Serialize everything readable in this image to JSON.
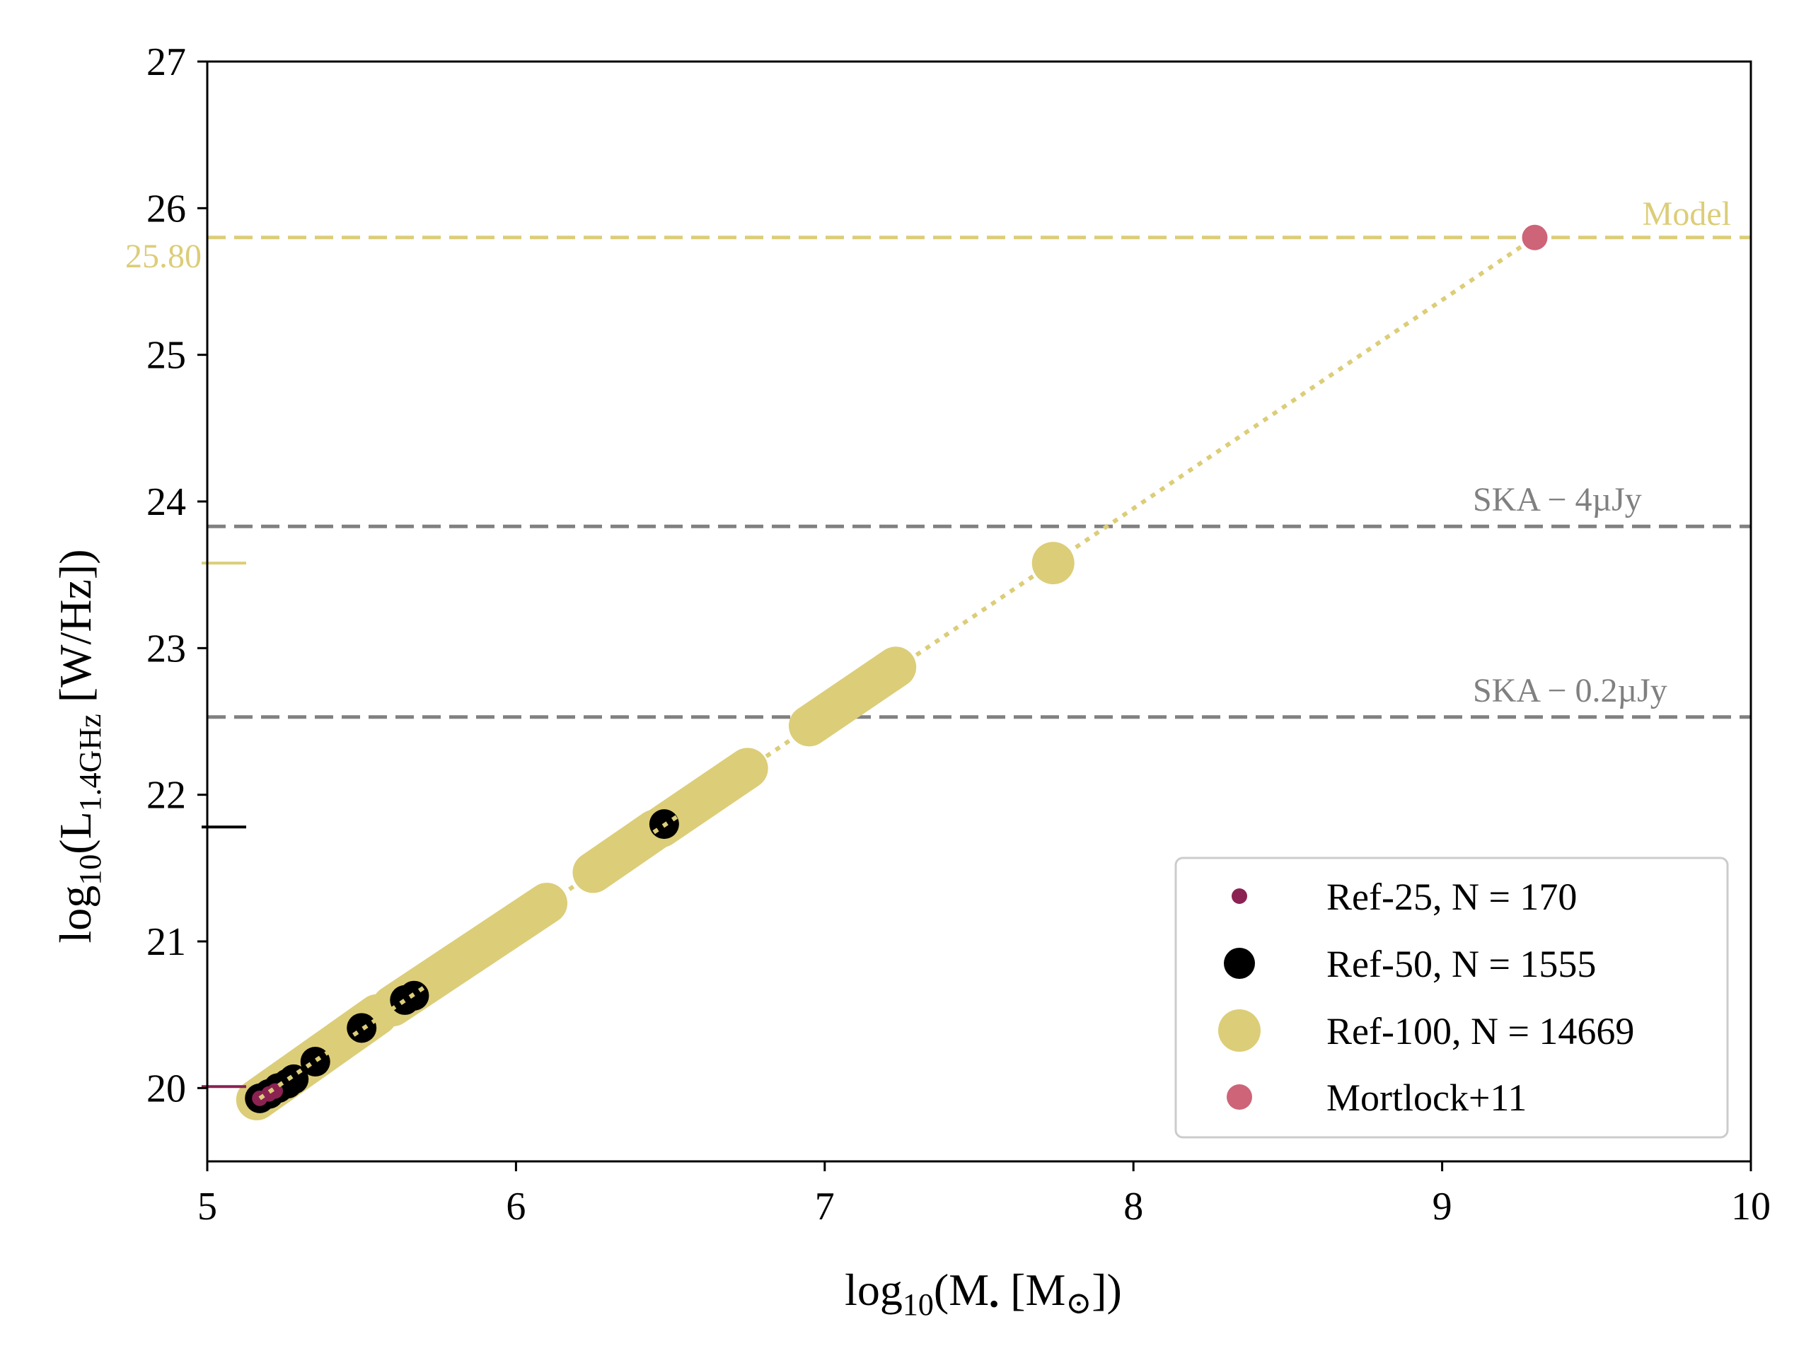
{
  "chart_data": {
    "type": "scatter",
    "title": "",
    "xlabel": {
      "prefix": "log",
      "sub": "10",
      "body": "(M",
      "bullet": "•",
      "unit_open": " [M",
      "sun": "⊙",
      "close": "])"
    },
    "ylabel": {
      "prefix": "log",
      "sub1": "10",
      "body": "(L",
      "sub2": "1.4GHz",
      "unit": " [W/Hz])"
    },
    "xlim": [
      5,
      10
    ],
    "ylim": [
      19.5,
      27
    ],
    "x_ticks": [
      5,
      6,
      7,
      8,
      9,
      10
    ],
    "x_tick_labels": [
      "5",
      "6",
      "7",
      "8",
      "9",
      "10"
    ],
    "y_ticks": [
      20,
      21,
      22,
      23,
      24,
      25,
      26,
      27
    ],
    "y_tick_labels": [
      "20",
      "21",
      "22",
      "23",
      "24",
      "25",
      "26",
      "27"
    ],
    "grid": false,
    "legend_position": "lower right",
    "colors": {
      "ref25": "#8b2252",
      "ref50": "#000000",
      "ref100": "#dccd78",
      "mortlock": "#cd6478",
      "threshold": "#808080",
      "model": "#dccd78"
    },
    "series": [
      {
        "name": "Ref-25, N = 170",
        "points": [
          [
            5.17,
            19.93
          ],
          [
            5.2,
            19.96
          ],
          [
            5.22,
            19.98
          ]
        ]
      },
      {
        "name": "Ref-50, N = 1555",
        "points": [
          [
            5.17,
            19.93
          ],
          [
            5.2,
            19.96
          ],
          [
            5.23,
            20.0
          ],
          [
            5.26,
            20.03
          ],
          [
            5.28,
            20.06
          ],
          [
            5.35,
            20.18
          ],
          [
            5.5,
            20.41
          ],
          [
            5.64,
            20.6
          ],
          [
            5.67,
            20.63
          ],
          [
            6.48,
            21.8
          ]
        ]
      },
      {
        "name": "Ref-100, N = 14669",
        "segments": [
          [
            5.16,
            19.92,
            5.55,
            20.5
          ],
          [
            5.6,
            20.56,
            6.1,
            21.26
          ],
          [
            6.25,
            21.47,
            6.45,
            21.76
          ],
          [
            6.47,
            21.78,
            6.75,
            22.18
          ],
          [
            6.95,
            22.47,
            7.23,
            22.87
          ]
        ],
        "points": [
          [
            7.74,
            23.58
          ]
        ]
      },
      {
        "name": "Mortlock+11",
        "points": [
          [
            9.3,
            25.8
          ]
        ]
      }
    ],
    "fit_line": [
      [
        5.17,
        19.93
      ],
      [
        9.3,
        25.8
      ]
    ],
    "horizontal_lines": [
      {
        "y": 25.8,
        "label": "Model",
        "value_label": "25.80",
        "color": "#dccd78"
      },
      {
        "y": 23.83,
        "label": "SKA − 4µJy",
        "color": "#808080"
      },
      {
        "y": 22.53,
        "label": "SKA − 0.2µJy",
        "color": "#808080"
      }
    ],
    "axis_markers": [
      {
        "y": 23.58,
        "color": "#dccd78"
      },
      {
        "y": 21.78,
        "color": "#000000"
      },
      {
        "y": 20.01,
        "color": "#8b2252"
      }
    ]
  }
}
